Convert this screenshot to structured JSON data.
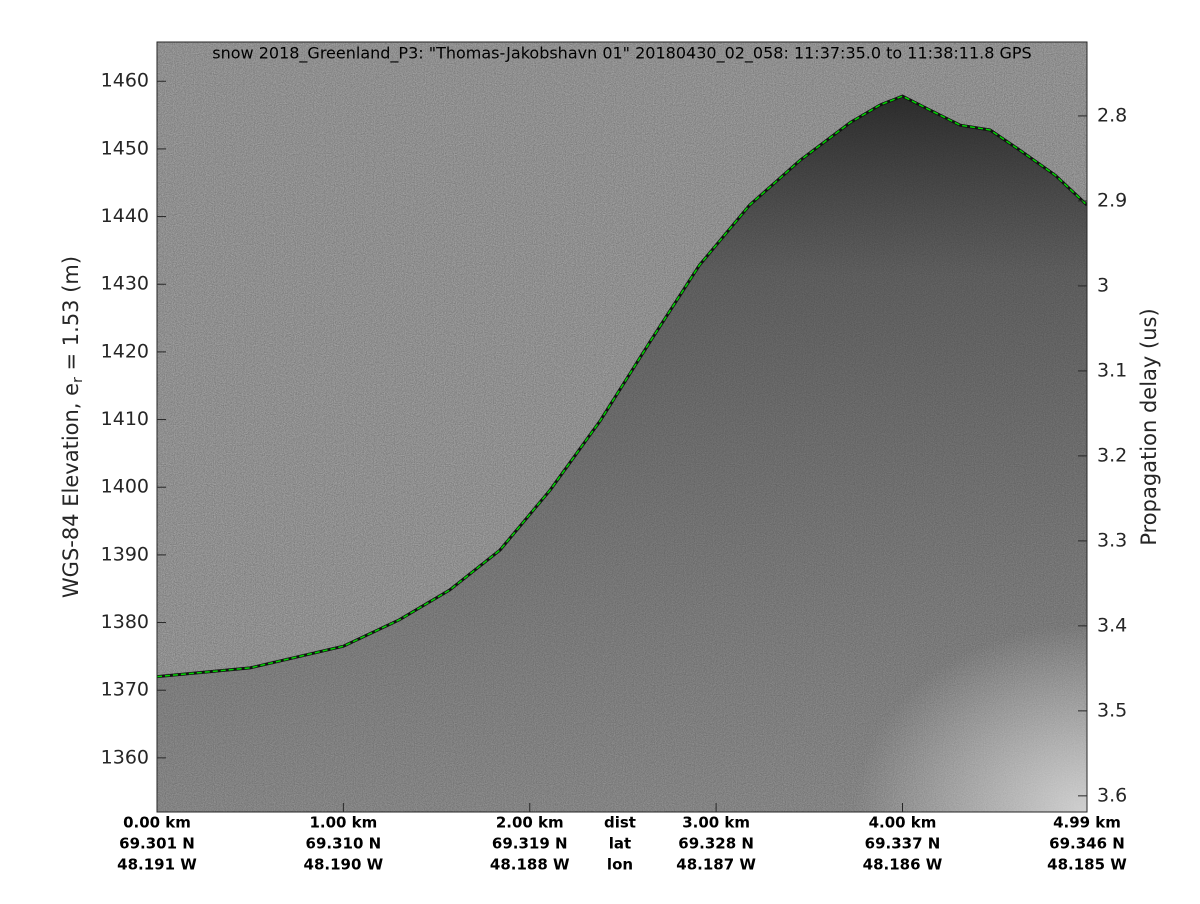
{
  "chart_data": {
    "type": "line",
    "title": "snow 2018_Greenland_P3: \"Thomas-Jakobshavn 01\"  20180430_02_058: 11:37:35.0 to 11:38:11.8 GPS",
    "ylabel_parts": [
      "WGS-84 Elevation, e",
      "r",
      " = 1.53 (m)"
    ],
    "y2label": "Propagation delay (us)",
    "x": [
      0,
      0.5,
      1.0,
      1.3,
      1.57,
      1.84,
      2.11,
      2.38,
      2.65,
      2.91,
      3.18,
      3.45,
      3.72,
      3.88,
      4.0,
      4.15,
      4.31,
      4.47,
      4.63,
      4.82,
      4.99
    ],
    "values": [
      1372.0,
      1373.3,
      1376.5,
      1380.4,
      1384.8,
      1390.7,
      1399.6,
      1409.9,
      1421.7,
      1432.8,
      1441.7,
      1448.3,
      1453.9,
      1456.5,
      1457.8,
      1455.7,
      1453.5,
      1452.8,
      1449.8,
      1446.1,
      1441.7
    ],
    "color": "#00d000",
    "xlim": [
      0,
      4.99
    ],
    "xticks": [
      {
        "value": 0,
        "label": "0.00 km"
      },
      {
        "value": 1,
        "label": "1.00 km"
      },
      {
        "value": 2,
        "label": "2.00 km"
      },
      {
        "value": 3,
        "label": "3.00 km"
      },
      {
        "value": 4,
        "label": "4.00 km"
      },
      {
        "value": 4.99,
        "label": "4.99 km"
      }
    ],
    "lat_labels": [
      "69.301 N",
      "69.310 N",
      "69.319 N",
      "69.328 N",
      "69.337 N",
      "69.346 N"
    ],
    "lon_labels": [
      "48.191 W",
      "48.190 W",
      "48.188 W",
      "48.187 W",
      "48.186 W",
      "48.185 W"
    ],
    "x_row_names": [
      "dist",
      "lat",
      "lon"
    ],
    "ylim": [
      1352.0,
      1465.8
    ],
    "yticks": [
      1360,
      1370,
      1380,
      1390,
      1400,
      1410,
      1420,
      1430,
      1440,
      1450,
      1460
    ],
    "y2lim": [
      3.619,
      2.713
    ],
    "y2ticks": [
      2.8,
      2.9,
      3,
      3.1,
      3.2,
      3.3,
      3.4,
      3.5,
      3.6
    ]
  }
}
